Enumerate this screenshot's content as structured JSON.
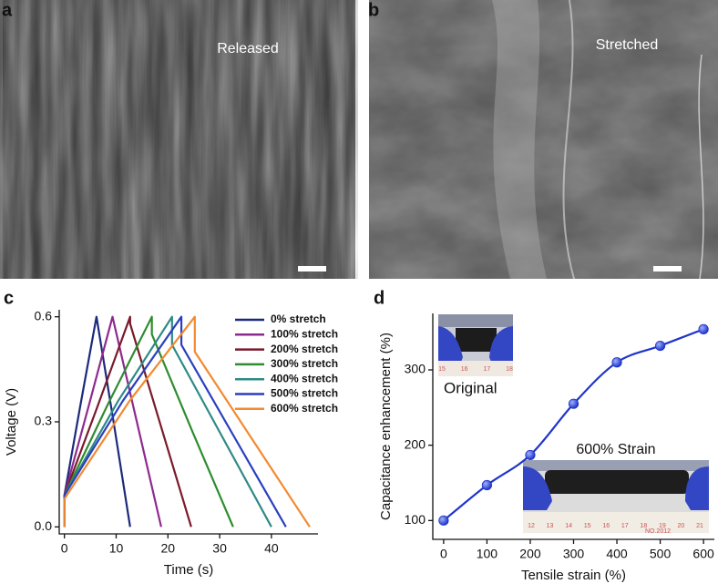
{
  "panel_a": {
    "label": "a",
    "caption": "Released"
  },
  "panel_b": {
    "label": "b",
    "caption": "Stretched"
  },
  "chart_data": [
    {
      "type": "line",
      "panel_label": "c",
      "x_label": "Time (s)",
      "y_label": "Voltage (V)",
      "xlim": [
        -1,
        49
      ],
      "ylim": [
        -0.02,
        0.62
      ],
      "xticks": [
        0,
        10,
        20,
        30,
        40
      ],
      "yticks": [
        {
          "value": 0,
          "label": "0.0"
        },
        0.3,
        0.6
      ],
      "grid": false,
      "legend": "upper right",
      "series": [
        {
          "name": "0% stretch",
          "color": "#1c2a7c",
          "x": [
            0,
            0,
            3,
            6.2,
            9.5,
            12.7
          ],
          "values": [
            0,
            0.09,
            0.34,
            0.6,
            0.3,
            0
          ]
        },
        {
          "name": "100% stretch",
          "color": "#8e2a8e",
          "x": [
            0,
            0,
            4.6,
            9.3,
            14,
            18.7
          ],
          "values": [
            0,
            0.09,
            0.34,
            0.6,
            0.3,
            0
          ]
        },
        {
          "name": "200% stretch",
          "color": "#7a1a2c",
          "x": [
            0,
            0,
            6.3,
            12.7,
            12.7,
            18.6,
            24.5
          ],
          "values": [
            0,
            0.09,
            0.34,
            0.6,
            0.58,
            0.29,
            0
          ]
        },
        {
          "name": "300% stretch",
          "color": "#2f8c2f",
          "x": [
            0,
            0,
            8.4,
            16.9,
            16.9,
            24.8,
            32.6
          ],
          "values": [
            0,
            0.09,
            0.35,
            0.6,
            0.55,
            0.27,
            0
          ]
        },
        {
          "name": "400% stretch",
          "color": "#2e8a86",
          "x": [
            0,
            0,
            10.4,
            20.8,
            20.8,
            30.4,
            40
          ],
          "values": [
            0,
            0.09,
            0.36,
            0.6,
            0.52,
            0.26,
            0
          ]
        },
        {
          "name": "500% stretch",
          "color": "#2a3fbf",
          "x": [
            0,
            0,
            11.3,
            22.6,
            22.6,
            32.7,
            42.8
          ],
          "values": [
            0,
            0.09,
            0.36,
            0.6,
            0.52,
            0.26,
            0
          ]
        },
        {
          "name": "600% stretch",
          "color": "#f28a30",
          "x": [
            0,
            0,
            12.6,
            25.2,
            25.2,
            36.3,
            47.4
          ],
          "values": [
            0,
            0.08,
            0.36,
            0.6,
            0.5,
            0.25,
            0
          ]
        }
      ]
    },
    {
      "type": "line",
      "panel_label": "d",
      "x_label": "Tensile strain (%)",
      "y_label": "Capacitance enhancement (%)",
      "xlim": [
        -25,
        625
      ],
      "ylim": [
        75,
        375
      ],
      "xticks": [
        0,
        100,
        200,
        300,
        400,
        500,
        600
      ],
      "yticks": [
        100,
        200,
        300
      ],
      "grid": false,
      "markers": true,
      "smooth": true,
      "color": "#1f35c8",
      "x": [
        0,
        100,
        200,
        300,
        400,
        500,
        600
      ],
      "values": [
        100,
        147,
        187,
        255,
        310,
        332,
        354
      ],
      "insets": [
        {
          "caption": "Original",
          "ruler": [
            "15",
            "16",
            "17",
            "18"
          ]
        },
        {
          "caption": "600% Strain",
          "ruler": [
            "12",
            "13",
            "14",
            "15",
            "16",
            "17",
            "18",
            "19",
            "20",
            "21"
          ],
          "mark": "NO.2012"
        }
      ]
    }
  ]
}
